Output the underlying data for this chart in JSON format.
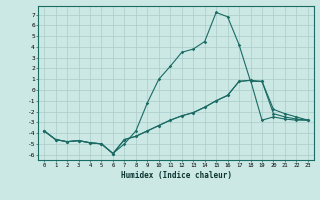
{
  "title": "",
  "xlabel": "Humidex (Indice chaleur)",
  "background_color": "#cce8e5",
  "grid_color": "#aaccca",
  "line_color": "#1a6b63",
  "xlim": [
    -0.5,
    23.5
  ],
  "ylim": [
    -6.5,
    7.8
  ],
  "xticks": [
    0,
    1,
    2,
    3,
    4,
    5,
    6,
    7,
    8,
    9,
    10,
    11,
    12,
    13,
    14,
    15,
    16,
    17,
    18,
    19,
    20,
    21,
    22,
    23
  ],
  "yticks": [
    -6,
    -5,
    -4,
    -3,
    -2,
    -1,
    0,
    1,
    2,
    3,
    4,
    5,
    6,
    7
  ],
  "line1_x": [
    0,
    1,
    2,
    3,
    4,
    5,
    6,
    7,
    8,
    9,
    10,
    11,
    12,
    13,
    14,
    15,
    16,
    17,
    18,
    19,
    20,
    21,
    22,
    23
  ],
  "line1_y": [
    -3.8,
    -4.6,
    -4.8,
    -4.7,
    -4.9,
    -5.0,
    -5.9,
    -5.0,
    -3.8,
    -1.2,
    1.0,
    2.2,
    3.5,
    3.8,
    4.5,
    7.2,
    6.8,
    4.2,
    0.8,
    0.8,
    -1.8,
    -2.2,
    -2.5,
    -2.8
  ],
  "line2_x": [
    0,
    1,
    2,
    3,
    4,
    5,
    6,
    7,
    8,
    9,
    10,
    11,
    12,
    13,
    14,
    15,
    16,
    17,
    18,
    19,
    20,
    21,
    22,
    23
  ],
  "line2_y": [
    -3.8,
    -4.6,
    -4.8,
    -4.7,
    -4.9,
    -5.0,
    -5.9,
    -4.6,
    -4.3,
    -3.8,
    -3.3,
    -2.8,
    -2.4,
    -2.1,
    -1.6,
    -1.0,
    -0.5,
    0.8,
    0.9,
    0.8,
    -2.2,
    -2.5,
    -2.7,
    -2.8
  ],
  "line3_x": [
    0,
    1,
    2,
    3,
    4,
    5,
    6,
    7,
    8,
    9,
    10,
    11,
    12,
    13,
    14,
    15,
    16,
    17,
    18,
    19,
    20,
    21,
    22,
    23
  ],
  "line3_y": [
    -3.8,
    -4.6,
    -4.8,
    -4.7,
    -4.9,
    -5.0,
    -5.9,
    -4.6,
    -4.3,
    -3.8,
    -3.3,
    -2.8,
    -2.4,
    -2.1,
    -1.6,
    -1.0,
    -0.5,
    0.8,
    0.9,
    -2.8,
    -2.5,
    -2.7,
    -2.8,
    -2.8
  ]
}
